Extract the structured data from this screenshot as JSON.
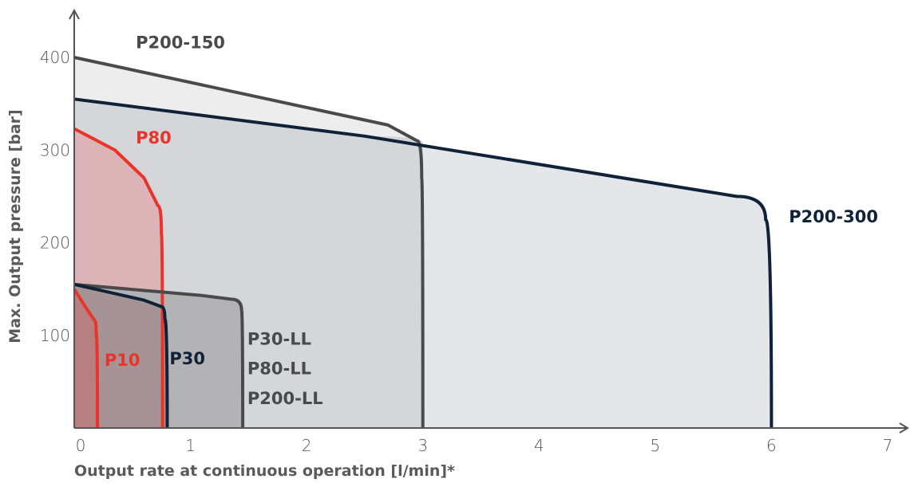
{
  "chart_data": {
    "type": "area",
    "xlabel": "Output rate at continuous operation [l/min]*",
    "ylabel": "Max. Output pressure [bar]",
    "xlim": [
      0,
      7
    ],
    "ylim": [
      0,
      400
    ],
    "x_ticks": [
      0,
      1,
      2,
      3,
      4,
      5,
      6,
      7
    ],
    "y_ticks": [
      100,
      200,
      300,
      400
    ],
    "grid": false,
    "colors": {
      "red": "#e8342a",
      "navy": "#0f2238",
      "gray": "#4a4a4a"
    },
    "series": [
      {
        "key": "p200_150",
        "color": "#4a4a4a",
        "fill": "#ededee",
        "points": [
          [
            0,
            400
          ],
          [
            2.7,
            327
          ],
          [
            2.95,
            310
          ],
          [
            2.99,
            270
          ],
          [
            3.0,
            0
          ]
        ]
      },
      {
        "key": "p200_300",
        "color": "#0f2238",
        "fill": "#e4e6ea",
        "points": [
          [
            0,
            355
          ],
          [
            2.5,
            315
          ],
          [
            5.7,
            250
          ],
          [
            5.95,
            225
          ],
          [
            6.0,
            0
          ]
        ]
      },
      {
        "key": "p200_300_shade",
        "color": "none",
        "fill": "#d5d6da",
        "points": [
          [
            0,
            355
          ],
          [
            2.5,
            315
          ],
          [
            3.0,
            308
          ],
          [
            3.0,
            0
          ]
        ]
      },
      {
        "key": "p80",
        "color": "#e8342a",
        "fill": "#dcb3b6",
        "points": [
          [
            0,
            323
          ],
          [
            0.35,
            300
          ],
          [
            0.6,
            270
          ],
          [
            0.72,
            240
          ],
          [
            0.75,
            210
          ],
          [
            0.76,
            0
          ]
        ]
      },
      {
        "key": "p30_ll",
        "color": "#4a4a4a",
        "fill": "#b3b3b6",
        "points": [
          [
            0,
            155
          ],
          [
            1.1,
            143
          ],
          [
            1.35,
            139
          ],
          [
            1.44,
            127
          ],
          [
            1.45,
            0
          ]
        ]
      },
      {
        "key": "p30",
        "color": "#0f2238",
        "fill": "#a59395",
        "points": [
          [
            0,
            155
          ],
          [
            0.6,
            138
          ],
          [
            0.75,
            131
          ],
          [
            0.78,
            118
          ],
          [
            0.8,
            0
          ]
        ]
      },
      {
        "key": "p10",
        "color": "#e8342a",
        "fill": "#b77f7f",
        "points": [
          [
            0,
            150
          ],
          [
            0.1,
            130
          ],
          [
            0.17,
            117
          ],
          [
            0.19,
            100
          ],
          [
            0.2,
            0
          ]
        ]
      }
    ],
    "labels": [
      {
        "key": "p200_150",
        "text": "P200-150",
        "color": "#4a4a4a",
        "at": [
          0.53,
          410
        ]
      },
      {
        "key": "p80",
        "text": "P80",
        "color": "#e8342a",
        "at": [
          0.53,
          307
        ]
      },
      {
        "key": "p200_300",
        "text": "P200-300",
        "color": "#0f2238",
        "at": [
          6.15,
          222
        ]
      },
      {
        "key": "p30_ll",
        "text": "P30-LL",
        "color": "#4a4a4a",
        "at": [
          1.49,
          90
        ]
      },
      {
        "key": "p80_ll",
        "text": "P80-LL",
        "color": "#4a4a4a",
        "at": [
          1.49,
          58
        ]
      },
      {
        "key": "p200_ll",
        "text": "P200-LL",
        "color": "#4a4a4a",
        "at": [
          1.49,
          26
        ]
      },
      {
        "key": "p10",
        "text": "P10",
        "color": "#e8342a",
        "at": [
          0.26,
          67
        ]
      },
      {
        "key": "p30",
        "text": "P30",
        "color": "#0f2238",
        "at": [
          0.82,
          69
        ]
      }
    ]
  }
}
